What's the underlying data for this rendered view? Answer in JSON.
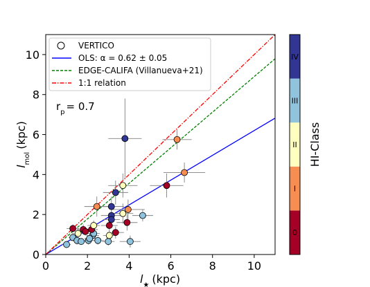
{
  "chart_data": {
    "type": "scatter",
    "xlabel_base": "l",
    "xlabel_sub": "★",
    "xlabel_unit": "(kpc)",
    "ylabel_base": "l",
    "ylabel_sub": "mol",
    "ylabel_unit": "(kpc)",
    "xlim": [
      0,
      11
    ],
    "ylim": [
      0,
      11
    ],
    "xticks": [
      "0",
      "2",
      "4",
      "6",
      "8",
      "10"
    ],
    "yticks": [
      "0",
      "2",
      "4",
      "6",
      "8",
      "10"
    ],
    "annotation_base": "r",
    "annotation_sub": "p",
    "annotation_value": "= 0.7",
    "legend": {
      "placement": "top-left",
      "entries": [
        {
          "label": "VERTICO",
          "kind": "marker"
        },
        {
          "label": "OLS: α = 0.62 ± 0.05",
          "kind": "line",
          "color": "#0000ff",
          "dash": "solid"
        },
        {
          "label": "EDGE-CALIFA (Villanueva+21)",
          "kind": "line",
          "color": "#008000",
          "dash": "dashed"
        },
        {
          "label": "1:1 relation",
          "kind": "line",
          "color": "#ff0000",
          "dash": "dashdot"
        }
      ]
    },
    "lines": [
      {
        "name": "ols",
        "slope": 0.62,
        "intercept": 0,
        "color": "#0000ff",
        "dash": "solid"
      },
      {
        "name": "edge",
        "slope": 0.89,
        "intercept": 0,
        "color": "#008000",
        "dash": "dashed"
      },
      {
        "name": "one_to_one",
        "slope": 1.0,
        "intercept": 0,
        "color": "#ff0000",
        "dash": "dashdot"
      }
    ],
    "colorbar": {
      "label": "HI-Class",
      "classes": [
        {
          "label": "0",
          "color": "#a50026"
        },
        {
          "label": "I",
          "color": "#f88d52"
        },
        {
          "label": "II",
          "color": "#ffffbf"
        },
        {
          "label": "III",
          "color": "#90c3dd"
        },
        {
          "label": "IV",
          "color": "#313695"
        }
      ]
    },
    "points": [
      {
        "x": 1.0,
        "y": 0.5,
        "xerr": 0.2,
        "yerr": 0.15,
        "cls": 3
      },
      {
        "x": 1.3,
        "y": 0.85,
        "xerr": 0.2,
        "yerr": 0.15,
        "cls": 3
      },
      {
        "x": 1.5,
        "y": 0.7,
        "xerr": 0.3,
        "yerr": 0.2,
        "cls": 3
      },
      {
        "x": 1.7,
        "y": 0.65,
        "xerr": 0.2,
        "yerr": 0.15,
        "cls": 3
      },
      {
        "x": 2.05,
        "y": 0.7,
        "xerr": 0.3,
        "yerr": 0.2,
        "cls": 3
      },
      {
        "x": 2.25,
        "y": 0.95,
        "xerr": 0.3,
        "yerr": 0.2,
        "cls": 3
      },
      {
        "x": 2.5,
        "y": 0.7,
        "xerr": 0.3,
        "yerr": 0.2,
        "cls": 3
      },
      {
        "x": 2.1,
        "y": 0.8,
        "xerr": 0.25,
        "yerr": 0.2,
        "cls": 3
      },
      {
        "x": 3.0,
        "y": 0.65,
        "xerr": 0.3,
        "yerr": 0.2,
        "cls": 3
      },
      {
        "x": 4.05,
        "y": 0.65,
        "xerr": 0.5,
        "yerr": 0.3,
        "cls": 3
      },
      {
        "x": 4.65,
        "y": 1.95,
        "xerr": 0.5,
        "yerr": 0.3,
        "cls": 3
      },
      {
        "x": 2.3,
        "y": 1.05,
        "xerr": 0.3,
        "yerr": 0.25,
        "cls": 3
      },
      {
        "x": 1.3,
        "y": 1.3,
        "xerr": 0.3,
        "yerr": 0.2,
        "cls": 0
      },
      {
        "x": 1.8,
        "y": 1.25,
        "xerr": 0.3,
        "yerr": 0.25,
        "cls": 0
      },
      {
        "x": 1.9,
        "y": 1.15,
        "xerr": 0.25,
        "yerr": 0.2,
        "cls": 0
      },
      {
        "x": 2.2,
        "y": 1.25,
        "xerr": 0.3,
        "yerr": 0.2,
        "cls": 0
      },
      {
        "x": 3.05,
        "y": 1.45,
        "xerr": 0.4,
        "yerr": 0.3,
        "cls": 0
      },
      {
        "x": 3.35,
        "y": 1.1,
        "xerr": 0.4,
        "yerr": 0.3,
        "cls": 0
      },
      {
        "x": 3.9,
        "y": 1.6,
        "xerr": 0.5,
        "yerr": 0.4,
        "cls": 0
      },
      {
        "x": 5.8,
        "y": 3.45,
        "xerr": 0.8,
        "yerr": 0.6,
        "cls": 0
      },
      {
        "x": 2.45,
        "y": 2.4,
        "xerr": 0.6,
        "yerr": 0.5,
        "cls": 1
      },
      {
        "x": 3.95,
        "y": 2.25,
        "xerr": 0.8,
        "yerr": 0.5,
        "cls": 1
      },
      {
        "x": 6.3,
        "y": 5.75,
        "xerr": 0.7,
        "yerr": 0.5,
        "cls": 1
      },
      {
        "x": 6.65,
        "y": 4.1,
        "xerr": 1.0,
        "yerr": 0.5,
        "cls": 1
      },
      {
        "x": 1.55,
        "y": 1.05,
        "xerr": 0.3,
        "yerr": 0.25,
        "cls": 2
      },
      {
        "x": 2.3,
        "y": 1.45,
        "xerr": 0.3,
        "yerr": 0.25,
        "cls": 2
      },
      {
        "x": 3.05,
        "y": 0.95,
        "xerr": 0.3,
        "yerr": 0.25,
        "cls": 2
      },
      {
        "x": 3.7,
        "y": 2.05,
        "xerr": 0.5,
        "yerr": 0.5,
        "cls": 2
      },
      {
        "x": 3.7,
        "y": 3.45,
        "xerr": 0.7,
        "yerr": 0.6,
        "cls": 2
      },
      {
        "x": 3.15,
        "y": 2.4,
        "xerr": 0.6,
        "yerr": 0.5,
        "cls": 4
      },
      {
        "x": 3.15,
        "y": 1.95,
        "xerr": 0.5,
        "yerr": 0.4,
        "cls": 4
      },
      {
        "x": 3.15,
        "y": 1.75,
        "xerr": 0.4,
        "yerr": 0.3,
        "cls": 4
      },
      {
        "x": 3.35,
        "y": 3.1,
        "xerr": 0.6,
        "yerr": 0.6,
        "cls": 4
      },
      {
        "x": 3.8,
        "y": 5.8,
        "xerr": 0.8,
        "yerr": 2.0,
        "cls": 4
      }
    ]
  }
}
